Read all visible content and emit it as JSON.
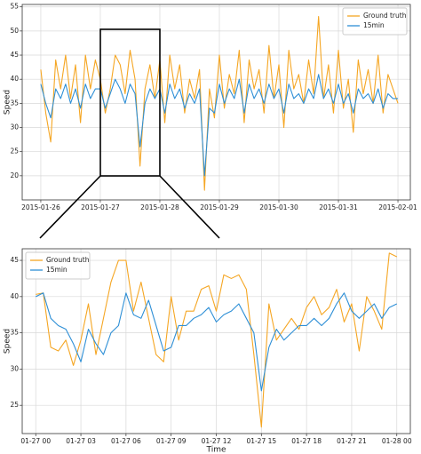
{
  "chart_data": [
    {
      "type": "line",
      "ylabel": "Speed",
      "legend": "upper right",
      "grid": true,
      "xlim": [
        "2015-01-25 16:30",
        "2015-02-01 05:00"
      ],
      "xticks": [
        "2015-01-26",
        "2015-01-27",
        "2015-01-28",
        "2015-01-29",
        "2015-01-30",
        "2015-01-31",
        "2015-02-01"
      ],
      "ylim": [
        15,
        55.5
      ],
      "yticks": [
        20,
        25,
        30,
        35,
        40,
        45,
        50,
        55
      ],
      "x": [
        "2015-01-26 00:00",
        "2015-01-26 02:00",
        "2015-01-26 04:00",
        "2015-01-26 06:00",
        "2015-01-26 08:00",
        "2015-01-26 10:00",
        "2015-01-26 12:00",
        "2015-01-26 14:00",
        "2015-01-26 16:00",
        "2015-01-26 18:00",
        "2015-01-26 20:00",
        "2015-01-26 22:00",
        "2015-01-27 00:00",
        "2015-01-27 02:00",
        "2015-01-27 04:00",
        "2015-01-27 06:00",
        "2015-01-27 08:00",
        "2015-01-27 10:00",
        "2015-01-27 12:00",
        "2015-01-27 14:00",
        "2015-01-27 16:00",
        "2015-01-27 18:00",
        "2015-01-27 20:00",
        "2015-01-27 22:00",
        "2015-01-28 00:00",
        "2015-01-28 02:00",
        "2015-01-28 04:00",
        "2015-01-28 06:00",
        "2015-01-28 08:00",
        "2015-01-28 10:00",
        "2015-01-28 12:00",
        "2015-01-28 14:00",
        "2015-01-28 16:00",
        "2015-01-28 18:00",
        "2015-01-28 20:00",
        "2015-01-28 22:00",
        "2015-01-29 00:00",
        "2015-01-29 02:00",
        "2015-01-29 04:00",
        "2015-01-29 06:00",
        "2015-01-29 08:00",
        "2015-01-29 10:00",
        "2015-01-29 12:00",
        "2015-01-29 14:00",
        "2015-01-29 16:00",
        "2015-01-29 18:00",
        "2015-01-29 20:00",
        "2015-01-29 22:00",
        "2015-01-30 00:00",
        "2015-01-30 02:00",
        "2015-01-30 04:00",
        "2015-01-30 06:00",
        "2015-01-30 08:00",
        "2015-01-30 10:00",
        "2015-01-30 12:00",
        "2015-01-30 14:00",
        "2015-01-30 16:00",
        "2015-01-30 18:00",
        "2015-01-30 20:00",
        "2015-01-30 22:00",
        "2015-01-31 00:00",
        "2015-01-31 02:00",
        "2015-01-31 04:00",
        "2015-01-31 06:00",
        "2015-01-31 08:00",
        "2015-01-31 10:00",
        "2015-01-31 12:00",
        "2015-01-31 14:00",
        "2015-01-31 16:00",
        "2015-01-31 18:00",
        "2015-01-31 20:00",
        "2015-01-31 22:00",
        "2015-02-01 00:00"
      ],
      "series": [
        {
          "name": "Ground truth",
          "color": "#f5a623",
          "values": [
            42,
            33,
            27,
            44,
            38,
            45,
            36,
            43,
            31,
            45,
            38,
            44,
            40,
            33,
            38,
            45,
            43,
            37,
            46,
            40,
            22,
            38,
            43,
            36,
            44,
            31,
            45,
            38,
            43,
            33,
            40,
            36,
            42,
            17,
            38,
            32,
            45,
            34,
            41,
            37,
            46,
            31,
            44,
            38,
            42,
            33,
            47,
            36,
            43,
            30,
            46,
            38,
            41,
            35,
            44,
            37,
            53,
            36,
            43,
            33,
            46,
            34,
            40,
            29,
            44,
            37,
            42,
            35,
            45,
            33,
            41,
            38,
            35
          ]
        },
        {
          "name": "15min",
          "color": "#2e8fd6",
          "values": [
            39,
            35,
            32,
            38,
            36,
            39,
            35,
            38,
            34,
            39,
            36,
            38,
            38,
            34,
            37,
            40,
            38,
            35,
            39,
            37,
            26,
            35,
            38,
            36,
            38,
            33,
            39,
            36,
            38,
            34,
            37,
            35,
            38,
            20,
            34,
            33,
            39,
            35,
            38,
            36,
            40,
            33,
            39,
            36,
            38,
            35,
            39,
            36,
            38,
            33,
            39,
            36,
            37,
            35,
            38,
            36,
            41,
            36,
            38,
            35,
            39,
            35,
            37,
            33,
            38,
            36,
            37,
            35,
            38,
            34,
            37,
            36,
            36
          ]
        }
      ]
    },
    {
      "type": "line",
      "ylabel": "Speed",
      "xlabel": "Time",
      "legend": "upper left",
      "grid": true,
      "xlim": [
        "2015-01-26 23:06",
        "2015-01-28 00:54"
      ],
      "xticks": [
        {
          "value": "2015-01-27 00:00",
          "label": "01-27 00"
        },
        {
          "value": "2015-01-27 03:00",
          "label": "01-27 03"
        },
        {
          "value": "2015-01-27 06:00",
          "label": "01-27 06"
        },
        {
          "value": "2015-01-27 09:00",
          "label": "01-27 09"
        },
        {
          "value": "2015-01-27 12:00",
          "label": "01-27 12"
        },
        {
          "value": "2015-01-27 15:00",
          "label": "01-27 15"
        },
        {
          "value": "2015-01-27 18:00",
          "label": "01-27 18"
        },
        {
          "value": "2015-01-27 21:00",
          "label": "01-27 21"
        },
        {
          "value": "2015-01-28 00:00",
          "label": "01-28 00"
        }
      ],
      "ylim": [
        21.1,
        46.6
      ],
      "yticks": [
        25,
        30,
        35,
        40,
        45
      ],
      "x": [
        "2015-01-27 00:00",
        "2015-01-27 00:30",
        "2015-01-27 01:00",
        "2015-01-27 01:30",
        "2015-01-27 02:00",
        "2015-01-27 02:30",
        "2015-01-27 03:00",
        "2015-01-27 03:30",
        "2015-01-27 04:00",
        "2015-01-27 04:30",
        "2015-01-27 05:00",
        "2015-01-27 05:30",
        "2015-01-27 06:00",
        "2015-01-27 06:30",
        "2015-01-27 07:00",
        "2015-01-27 07:30",
        "2015-01-27 08:00",
        "2015-01-27 08:30",
        "2015-01-27 09:00",
        "2015-01-27 09:30",
        "2015-01-27 10:00",
        "2015-01-27 10:30",
        "2015-01-27 11:00",
        "2015-01-27 11:30",
        "2015-01-27 12:00",
        "2015-01-27 12:30",
        "2015-01-27 13:00",
        "2015-01-27 13:30",
        "2015-01-27 14:00",
        "2015-01-27 14:30",
        "2015-01-27 15:00",
        "2015-01-27 15:30",
        "2015-01-27 16:00",
        "2015-01-27 16:30",
        "2015-01-27 17:00",
        "2015-01-27 17:30",
        "2015-01-27 18:00",
        "2015-01-27 18:30",
        "2015-01-27 19:00",
        "2015-01-27 19:30",
        "2015-01-27 20:00",
        "2015-01-27 20:30",
        "2015-01-27 21:00",
        "2015-01-27 21:30",
        "2015-01-27 22:00",
        "2015-01-27 22:30",
        "2015-01-27 23:00",
        "2015-01-27 23:30",
        "2015-01-28 00:00"
      ],
      "series": [
        {
          "name": "Ground truth",
          "color": "#f5a623",
          "values": [
            40.3,
            40.5,
            33,
            32.5,
            34,
            30.5,
            34,
            39,
            32,
            37,
            42,
            45,
            45,
            38,
            42,
            37,
            32,
            31,
            40,
            34,
            38,
            38,
            41,
            41.5,
            38,
            43,
            42.5,
            43,
            41,
            32,
            22,
            39,
            34,
            35.5,
            37,
            35.5,
            38.5,
            40,
            37.5,
            38.5,
            41,
            36.5,
            39,
            32.5,
            40,
            38,
            35.5,
            46,
            45.5
          ]
        },
        {
          "name": "15min",
          "color": "#2e8fd6",
          "values": [
            40,
            40.5,
            37,
            36,
            35.5,
            33.5,
            31,
            35.5,
            33.5,
            32,
            35,
            36,
            40.5,
            37.5,
            37,
            39.5,
            36,
            32.5,
            33,
            36,
            36,
            37,
            37.5,
            38.5,
            36.5,
            37.5,
            38,
            39,
            37,
            35,
            27,
            33,
            35.5,
            34,
            35,
            36,
            36,
            37,
            36,
            37,
            39,
            40.5,
            38,
            37,
            38,
            39,
            37,
            38.5,
            39
          ]
        }
      ]
    }
  ]
}
